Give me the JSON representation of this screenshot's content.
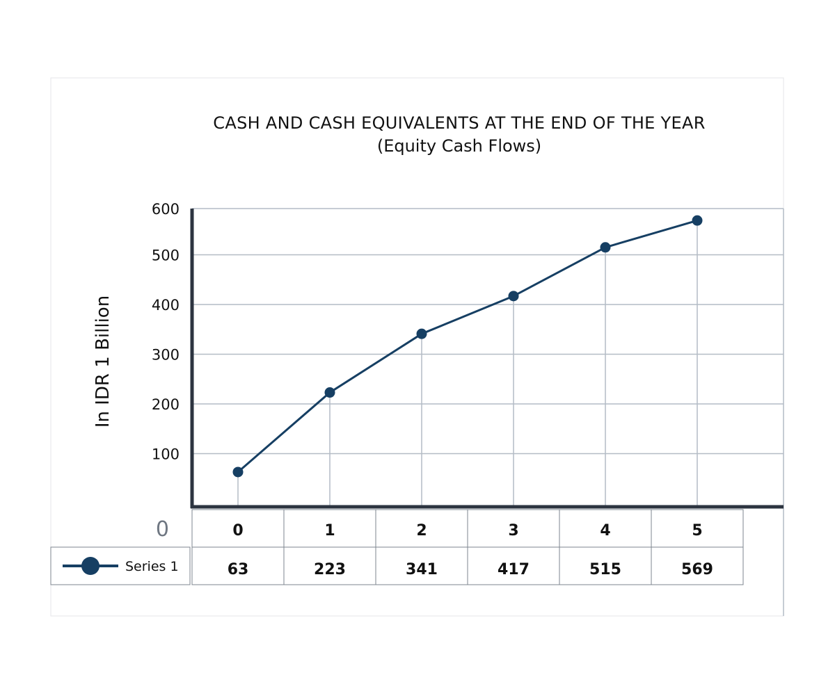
{
  "chart_data": {
    "type": "line",
    "title": "CASH AND CASH EQUIVALENTS AT THE END OF THE YEAR",
    "subtitle": "(Equity Cash Flows)",
    "ylabel": "In IDR 1 Billion",
    "xlabel": "",
    "ylim": [
      0,
      600
    ],
    "yticks": [
      "0",
      "100",
      "200",
      "300",
      "400",
      "500",
      "600"
    ],
    "x": [
      "0",
      "1",
      "2",
      "3",
      "4",
      "5"
    ],
    "series": [
      {
        "name": "Series 1",
        "values": [
          63,
          223,
          341,
          417,
          515,
          569
        ],
        "value_labels": [
          "63",
          "223",
          "341",
          "417",
          "515",
          "569"
        ]
      }
    ],
    "grid": true,
    "legend": "data-table-left",
    "colors": {
      "series": "#163f63",
      "grid": "#b4bcc5",
      "axis": "#2c3440",
      "frame": "#e4e6e9",
      "table_border": "#7d858f"
    }
  }
}
